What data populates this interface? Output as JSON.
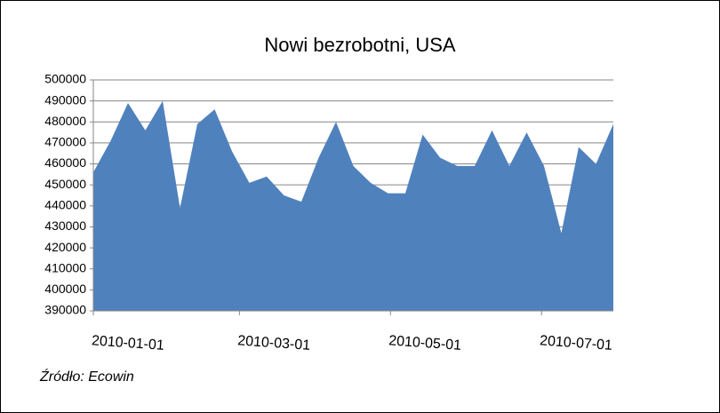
{
  "chart_data": {
    "type": "area",
    "title": "Nowi bezrobotni, USA",
    "source": "Źródło: Ecowin",
    "x": [
      "2010-01-01",
      "2010-01-08",
      "2010-01-15",
      "2010-01-22",
      "2010-01-29",
      "2010-02-05",
      "2010-02-12",
      "2010-02-19",
      "2010-02-26",
      "2010-03-05",
      "2010-03-12",
      "2010-03-19",
      "2010-03-26",
      "2010-04-02",
      "2010-04-09",
      "2010-04-16",
      "2010-04-23",
      "2010-04-30",
      "2010-05-07",
      "2010-05-14",
      "2010-05-21",
      "2010-05-28",
      "2010-06-04",
      "2010-06-11",
      "2010-06-18",
      "2010-06-25",
      "2010-07-02",
      "2010-07-09",
      "2010-07-16",
      "2010-07-23",
      "2010-07-30"
    ],
    "values": [
      456000,
      471000,
      489000,
      476000,
      490000,
      439000,
      479000,
      486000,
      466000,
      451000,
      454000,
      445000,
      442000,
      463000,
      480000,
      459000,
      451000,
      446000,
      446000,
      474000,
      463000,
      459000,
      459000,
      476000,
      459000,
      475000,
      459000,
      427000,
      468000,
      460000,
      479000
    ],
    "color": "#4f81bd",
    "xlim": [
      "2010-01-01",
      "2010-07-30"
    ],
    "xticks": [
      "2010-01-01",
      "2010-03-01",
      "2010-05-01",
      "2010-07-01"
    ],
    "ylim": [
      390000,
      500000
    ],
    "yticks": [
      390000,
      400000,
      410000,
      420000,
      430000,
      440000,
      450000,
      460000,
      470000,
      480000,
      490000,
      500000
    ],
    "grid": true
  }
}
